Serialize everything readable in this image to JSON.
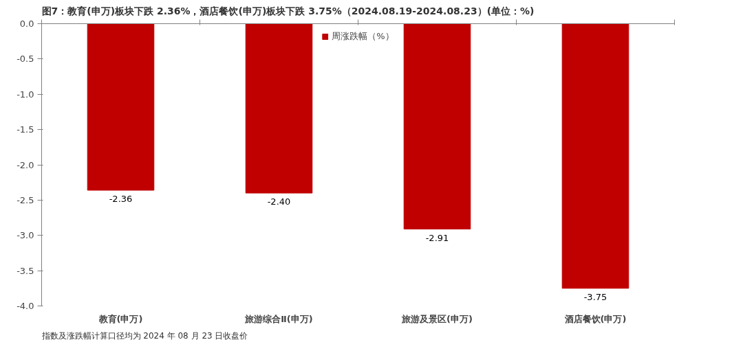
{
  "chart_data": {
    "type": "bar",
    "title": "图7：教育(申万)板块下跌 2.36%，酒店餐饮(申万)板块下跌 3.75%（2024.08.19-2024.08.23）(单位：%)",
    "categories": [
      "教育(申万)",
      "旅游综合Ⅱ(申万)",
      "旅游及景区(申万)",
      "酒店餐饮(申万)"
    ],
    "series": [
      {
        "name": "周涨跌幅（%）",
        "color": "#c00000",
        "values": [
          -2.36,
          -2.4,
          -2.91,
          -3.75
        ]
      }
    ],
    "ylim": [
      -4.0,
      0.0
    ],
    "yticks": [
      {
        "value": -4.0,
        "label": "-4.0"
      },
      {
        "value": -3.5,
        "label": "-3.5"
      },
      {
        "value": -3.0,
        "label": "-3.0"
      },
      {
        "value": -2.5,
        "label": "-2.5"
      },
      {
        "value": -2.0,
        "label": "-2.0"
      },
      {
        "value": -1.5,
        "label": "-1.5"
      },
      {
        "value": -1.0,
        "label": "-1.0"
      },
      {
        "value": -0.5,
        "label": "-0.5"
      },
      {
        "value": 0.0,
        "label": "0.0"
      }
    ],
    "value_labels": [
      "-2.36",
      "-2.40",
      "-2.91",
      "-3.75"
    ],
    "legend": "top",
    "grid": false,
    "annotations": [
      "指数及涨跌幅计算口径均为 2024 年 08 月 23 日收盘价"
    ]
  }
}
